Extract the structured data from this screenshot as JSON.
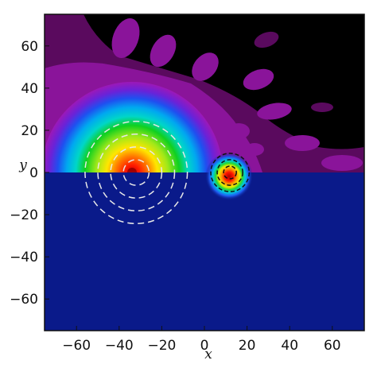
{
  "chart_data": {
    "type": "heatmap",
    "title": "",
    "xlabel": "x",
    "ylabel": "y",
    "xlim": [
      -75,
      75
    ],
    "ylim": [
      -75,
      75
    ],
    "xticks": [
      -60,
      -40,
      -20,
      0,
      20,
      40,
      60
    ],
    "yticks": [
      -60,
      -40,
      -20,
      0,
      20,
      40,
      60
    ],
    "xtick_labels": [
      "−60",
      "−40",
      "−20",
      "0",
      "20",
      "40",
      "60"
    ],
    "ytick_labels": [
      "−60",
      "−40",
      "−20",
      "0",
      "20",
      "40",
      "60"
    ],
    "colormap": "jet",
    "lower_half_color": "#0a1a8a",
    "large_source": {
      "center": [
        -32,
        0
      ],
      "approx_radius": 42
    },
    "small_source": {
      "center": [
        12,
        -3
      ],
      "approx_radius": 8
    },
    "white_dashed_circles": {
      "center": [
        -32,
        0
      ],
      "radii": [
        6,
        12,
        18,
        24
      ]
    },
    "black_dashed_circles": {
      "center": [
        12,
        0
      ],
      "radii": [
        3,
        6,
        9
      ]
    },
    "grid": false,
    "legend": "none"
  }
}
